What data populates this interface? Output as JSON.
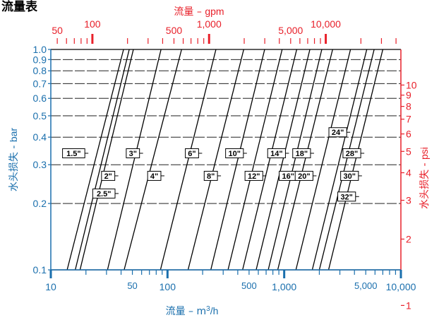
{
  "title": "流量表",
  "chart_data": {
    "type": "line",
    "title": "流量表",
    "x_axis": {
      "label_prefix": "流量 – m",
      "label_sup": "3",
      "label_suffix": "/h",
      "scale": "log",
      "range": [
        10,
        10000
      ],
      "ticks": [
        10,
        50,
        100,
        500,
        1000,
        5000,
        10000
      ],
      "tick_labels": [
        "10",
        "50",
        "100",
        "500",
        "1,000",
        "5,000",
        "10,000"
      ]
    },
    "x2_axis": {
      "label_prefix": "流量 – ",
      "label_unit": "gpm",
      "scale": "log",
      "ticks": [
        50,
        100,
        500,
        1000,
        5000,
        10000
      ],
      "tick_labels": [
        "50",
        "100",
        "500",
        "1,000",
        "5,000",
        "10,000"
      ]
    },
    "y_axis": {
      "label_prefix": "水头损失 - ",
      "label_unit": "bar",
      "scale": "log",
      "range": [
        0.1,
        1.0
      ],
      "ticks": [
        0.1,
        0.2,
        0.3,
        0.4,
        0.5,
        0.6,
        0.7,
        0.8,
        0.9,
        1.0
      ],
      "tick_labels": [
        "0.1",
        "0.2",
        "0.3",
        "0.4",
        "0.5",
        "0.6",
        "0.7",
        "0.8",
        "0.9",
        "1.0"
      ]
    },
    "y2_axis": {
      "label_prefix": "水头损失 - ",
      "label_unit": "psi",
      "scale": "log",
      "ticks": [
        1,
        2,
        3,
        4,
        5,
        6,
        7,
        8,
        9,
        10
      ],
      "tick_labels": [
        "1",
        "2",
        "3",
        "4",
        "5",
        "6",
        "7",
        "8",
        "9",
        "10"
      ]
    },
    "grid": true,
    "colors": {
      "metric": "#1a6fad",
      "imperial": "#e8202a",
      "lines": "#000000",
      "grid": "#000000"
    },
    "series": [
      {
        "name": "1.5\"",
        "flow_at_0_1_bar": 13.8,
        "flow_at_1_0_bar": 42
      },
      {
        "name": "2\"",
        "flow_at_0_1_bar": 16.2,
        "flow_at_1_0_bar": 47
      },
      {
        "name": "2.5\"",
        "flow_at_0_1_bar": 17.8,
        "flow_at_1_0_bar": 51
      },
      {
        "name": "3\"",
        "flow_at_0_1_bar": 30.6,
        "flow_at_1_0_bar": 88
      },
      {
        "name": "4\"",
        "flow_at_0_1_bar": 42.5,
        "flow_at_1_0_bar": 132
      },
      {
        "name": "6\"",
        "flow_at_0_1_bar": 87,
        "flow_at_1_0_bar": 260
      },
      {
        "name": "8\"",
        "flow_at_0_1_bar": 150,
        "flow_at_1_0_bar": 450
      },
      {
        "name": "10\"",
        "flow_at_0_1_bar": 235,
        "flow_at_1_0_bar": 680
      },
      {
        "name": "12\"",
        "flow_at_0_1_bar": 330,
        "flow_at_1_0_bar": 960
      },
      {
        "name": "14\"",
        "flow_at_0_1_bar": 440,
        "flow_at_1_0_bar": 1280
      },
      {
        "name": "16\"",
        "flow_at_0_1_bar": 575,
        "flow_at_1_0_bar": 1660
      },
      {
        "name": "18\"",
        "flow_at_0_1_bar": 730,
        "flow_at_1_0_bar": 2100
      },
      {
        "name": "20\"",
        "flow_at_0_1_bar": 880,
        "flow_at_1_0_bar": 2600
      },
      {
        "name": "24\"",
        "flow_at_0_1_bar": 1260,
        "flow_at_1_0_bar": 3700
      },
      {
        "name": "28\"",
        "flow_at_0_1_bar": 1740,
        "flow_at_1_0_bar": 5100
      },
      {
        "name": "30\"",
        "flow_at_0_1_bar": 2000,
        "flow_at_1_0_bar": 5900
      },
      {
        "name": "32\"",
        "flow_at_0_1_bar": 2400,
        "flow_at_1_0_bar": 7000
      }
    ],
    "line_labels": [
      {
        "text": "1.5\"",
        "flow": 15.7,
        "bar": 0.338
      },
      {
        "text": "2\"",
        "flow": 31,
        "bar": 0.267
      },
      {
        "text": "2.5\"",
        "flow": 28.5,
        "bar": 0.222
      },
      {
        "text": "3\"",
        "flow": 50.5,
        "bar": 0.338
      },
      {
        "text": "4\"",
        "flow": 77,
        "bar": 0.267
      },
      {
        "text": "6\"",
        "flow": 162,
        "bar": 0.338
      },
      {
        "text": "8\"",
        "flow": 235,
        "bar": 0.267
      },
      {
        "text": "10\"",
        "flow": 375,
        "bar": 0.338
      },
      {
        "text": "12\"",
        "flow": 550,
        "bar": 0.267
      },
      {
        "text": "14\"",
        "flow": 860,
        "bar": 0.338
      },
      {
        "text": "16\"",
        "flow": 1080,
        "bar": 0.267
      },
      {
        "text": "18\"",
        "flow": 1410,
        "bar": 0.338
      },
      {
        "text": "20\"",
        "flow": 1480,
        "bar": 0.267
      },
      {
        "text": "24\"",
        "flow": 2880,
        "bar": 0.421
      },
      {
        "text": "28\"",
        "flow": 3800,
        "bar": 0.338
      },
      {
        "text": "30\"",
        "flow": 3630,
        "bar": 0.267
      },
      {
        "text": "32\"",
        "flow": 3430,
        "bar": 0.215
      }
    ]
  }
}
